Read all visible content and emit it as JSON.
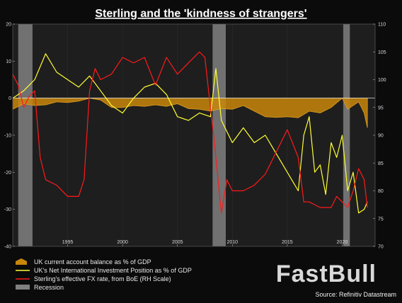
{
  "chart_data": {
    "type": "line",
    "title": "Sterling and the 'kindness of strangers'",
    "source": "Source: Refinitiv Datastream",
    "brand": "FastBull",
    "colors": {
      "current_account": "#c8860a",
      "niip": "#ffff33",
      "fx": "#ff1a1a",
      "recession": "#808080",
      "background": "#1e1e1e"
    },
    "left_axis": {
      "ylim": [
        -40,
        20
      ],
      "ticks": [
        20,
        10,
        0,
        -10,
        -20,
        -30,
        -40
      ],
      "tick_labels": [
        "20",
        "10",
        "0",
        "-10",
        "-20",
        "-30",
        "-40"
      ]
    },
    "right_axis": {
      "ylim": [
        70,
        110
      ],
      "ticks": [
        110,
        105,
        100,
        95,
        90,
        85,
        80,
        75,
        70
      ],
      "tick_labels": [
        "110",
        "105",
        "100",
        "95",
        "90",
        "85",
        "80",
        "75",
        "70"
      ]
    },
    "x_axis": {
      "xlim": [
        1990.0,
        2023.0
      ],
      "ticks": [
        1995,
        2000,
        2005,
        2010,
        2015,
        2020
      ],
      "tick_labels": [
        "1995",
        "2000",
        "2005",
        "2010",
        "2015",
        "2020"
      ]
    },
    "recessions": [
      [
        1990.5,
        1991.8
      ],
      [
        2008.2,
        2009.4
      ],
      [
        2020.1,
        2020.7
      ]
    ],
    "series": [
      {
        "name": "UK current account balance as % of GDP",
        "axis": "left",
        "style": "area",
        "x": [
          1990,
          1991,
          1992,
          1993,
          1994,
          1995,
          1996,
          1997,
          1998,
          1999,
          2000,
          2001,
          2002,
          2003,
          2004,
          2005,
          2006,
          2007,
          2008,
          2009,
          2010,
          2011,
          2012,
          2013,
          2014,
          2015,
          2016,
          2017,
          2018,
          2019,
          2020,
          2020.5,
          2021,
          2021.5,
          2022,
          2022.3
        ],
        "y": [
          -3.0,
          -1.5,
          -2.0,
          -1.8,
          -1.0,
          -1.2,
          -0.8,
          0.0,
          -0.5,
          -2.5,
          -2.5,
          -2.0,
          -2.2,
          -1.8,
          -2.2,
          -1.5,
          -2.8,
          -3.0,
          -3.5,
          -2.8,
          -3.0,
          -2.0,
          -3.5,
          -5.0,
          -5.2,
          -5.0,
          -5.3,
          -3.5,
          -4.0,
          -2.5,
          0.0,
          -3.0,
          -2.0,
          -1.0,
          -4.0,
          -8.0
        ]
      },
      {
        "name": "UK's Net International Investment Position as % of GDP",
        "axis": "left",
        "style": "line",
        "x": [
          1990,
          1991,
          1992,
          1993,
          1994,
          1995,
          1996,
          1997,
          1998,
          1999,
          2000,
          2001,
          2002,
          2003,
          2004,
          2005,
          2006,
          2007,
          2008,
          2008.5,
          2009,
          2010,
          2011,
          2012,
          2013,
          2014,
          2015,
          2016,
          2016.5,
          2017,
          2017.5,
          2018,
          2018.5,
          2019,
          2019.5,
          2020,
          2020.5,
          2021,
          2021.5,
          2022,
          2022.3
        ],
        "y": [
          0.0,
          2.0,
          5.0,
          12.0,
          7.0,
          5.0,
          3.0,
          6.0,
          2.0,
          -2.0,
          -4.0,
          0.0,
          3.0,
          4.0,
          1.0,
          -5.0,
          -6.0,
          -4.0,
          -5.0,
          8.0,
          -6.0,
          -12.0,
          -8.0,
          -12.0,
          -10.0,
          -15.0,
          -20.0,
          -25.0,
          -10.0,
          -5.0,
          -20.0,
          -18.0,
          -26.0,
          -12.0,
          -16.0,
          -10.0,
          -25.0,
          -20.0,
          -31.0,
          -30.0,
          -28.0
        ]
      },
      {
        "name": "Sterling's effective FX rate, from BoE (RH Scale)",
        "axis": "right",
        "style": "line",
        "x": [
          1990,
          1990.5,
          1991,
          1991.5,
          1992,
          1992.5,
          1993,
          1994,
          1995,
          1996,
          1996.5,
          1997,
          1997.5,
          1998,
          1999,
          2000,
          2001,
          2002,
          2003,
          2004,
          2005,
          2006,
          2007,
          2007.5,
          2008,
          2008.3,
          2009,
          2009.5,
          2010,
          2011,
          2012,
          2013,
          2014,
          2015,
          2016,
          2016.5,
          2017,
          2018,
          2019,
          2019.5,
          2020,
          2020.5,
          2021,
          2021.5,
          2022,
          2022.3
        ],
        "y": [
          101.0,
          99.0,
          95.0,
          97.0,
          98.0,
          86.0,
          82.0,
          81.0,
          79.0,
          79.0,
          82.0,
          98.0,
          102.0,
          100.0,
          101.0,
          104.0,
          103.0,
          104.0,
          99.0,
          104.0,
          101.0,
          103.0,
          105.0,
          104.0,
          95.0,
          90.0,
          76.0,
          82.0,
          80.0,
          80.0,
          81.0,
          83.0,
          87.0,
          91.0,
          86.0,
          78.0,
          78.0,
          77.0,
          77.0,
          79.0,
          78.0,
          77.0,
          80.0,
          84.0,
          82.0,
          77.0
        ]
      }
    ],
    "legend": {
      "items": [
        {
          "label": "UK current account balance as % of GDP",
          "swatch": "area-icon"
        },
        {
          "label": "UK's Net International Investment Position as % of GDP",
          "swatch": "line-icon"
        },
        {
          "label": "Sterling's effective FX rate, from BoE (RH Scale)",
          "swatch": "line-icon"
        },
        {
          "label": "Recession",
          "swatch": "box-icon"
        }
      ]
    }
  }
}
